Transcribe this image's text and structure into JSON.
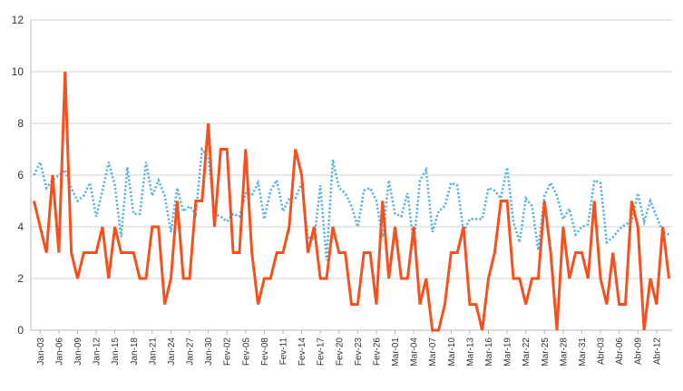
{
  "chart_data": {
    "type": "line",
    "ylim": [
      0,
      12
    ],
    "y_ticks": [
      "0",
      "2",
      "4",
      "6",
      "8",
      "10",
      "12"
    ],
    "grid": "horizontal",
    "x_ticks": [
      "Jan-03",
      "Jan-06",
      "Jan-09",
      "Jan-12",
      "Jan-15",
      "Jan-18",
      "Jan-21",
      "Jan-24",
      "Jan-27",
      "Jan-30",
      "Fev-02",
      "Fev-05",
      "Fev-08",
      "Fev-11",
      "Fev-14",
      "Fev-17",
      "Fev-20",
      "Fev-23",
      "Fev-26",
      "Mar-01",
      "Mar-04",
      "Mar-07",
      "Mar-10",
      "Mar-13",
      "Mar-16",
      "Mar-19",
      "Mar-22",
      "Mar-25",
      "Mar-28",
      "Mar-31",
      "Abr-03",
      "Abr-06",
      "Abr-09",
      "Abr-12"
    ],
    "series": [
      {
        "color": "#f4511e",
        "style": "solid",
        "values": [
          5,
          4,
          3,
          6,
          3,
          10,
          3,
          2,
          3,
          3,
          3,
          4,
          2,
          4,
          3,
          3,
          3,
          2,
          2,
          4,
          4,
          1,
          2,
          5,
          2,
          2,
          5,
          5,
          8,
          4,
          7,
          7,
          3,
          3,
          7,
          3,
          1,
          2,
          2,
          3,
          3,
          4,
          7,
          6,
          3,
          4,
          2,
          2,
          4,
          3,
          3,
          1,
          1,
          3,
          3,
          1,
          5,
          2,
          4,
          2,
          2,
          4,
          1,
          2,
          0,
          0,
          1,
          3,
          3,
          4,
          1,
          1,
          0,
          2,
          3,
          5,
          5,
          2,
          2,
          1,
          2,
          2,
          5,
          3,
          0,
          4,
          2,
          3,
          3,
          2,
          5,
          2,
          1,
          3,
          1,
          1,
          5,
          4,
          0,
          2,
          1,
          4,
          2
        ]
      },
      {
        "color": "#5ab4e5",
        "style": "dotted",
        "values": [
          6,
          6.5,
          5.5,
          5.8,
          6,
          6.2,
          5.5,
          5,
          5.2,
          5.7,
          4.4,
          5.4,
          6.5,
          5.6,
          3.6,
          6.3,
          4.5,
          4.5,
          6.5,
          5.2,
          5.8,
          5.2,
          3.8,
          5.5,
          4.6,
          4.8,
          4.5,
          7,
          6.7,
          4.5,
          4.4,
          4.2,
          4.5,
          4.4,
          5.3,
          5.2,
          5.7,
          4.3,
          5.4,
          5.8,
          4.6,
          5.1,
          5.1,
          5.7,
          3.6,
          3.5,
          5.6,
          2.7,
          6.6,
          5.5,
          5.3,
          4.8,
          4,
          5.4,
          5.5,
          5,
          3.6,
          5.8,
          4.5,
          4.4,
          5.3,
          3.3,
          5.8,
          6.2,
          3.8,
          4.6,
          4.8,
          5.7,
          5.6,
          3.8,
          4.3,
          4.3,
          4.3,
          5.5,
          5.4,
          5.1,
          6.3,
          4.2,
          3.4,
          5.1,
          4.8,
          3.1,
          5.2,
          5.7,
          5.2,
          4.3,
          4.7,
          3.7,
          4,
          4.1,
          5.8,
          5.7,
          3.4,
          3.6,
          3.9,
          4.1,
          4.2,
          5.3,
          4.2,
          5,
          4.4,
          3.8,
          3.7
        ]
      }
    ]
  }
}
